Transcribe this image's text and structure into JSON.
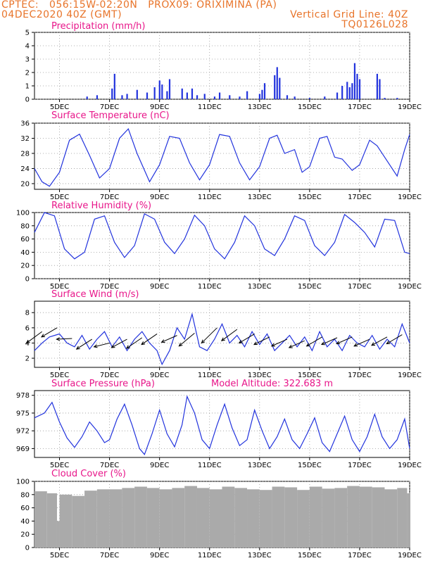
{
  "header": {
    "line1": "CPTEC:   056:15W-02:20N   PROX09: ORIXIMINA (PA)",
    "line2": "04DEC2020 40Z (GMT)",
    "grid_note": "Vertical Grid Line: 40Z",
    "code": "TQ0126L028"
  },
  "colors": {
    "header": "#e8742a",
    "title": "#e8168a",
    "series": "#2233dd",
    "cloud": "#aaaaaa",
    "grid": "#999999"
  },
  "chart_data": [
    {
      "id": "precip",
      "type": "bar",
      "title": "Precipitation (mm/h)",
      "ylim": [
        0,
        5
      ],
      "yticks": [
        0,
        1,
        2,
        3,
        4,
        5
      ],
      "x_ticks": [
        "5DEC",
        "7DEC",
        "9DEC",
        "11DEC",
        "13DEC",
        "15DEC",
        "17DEC",
        "19DEC"
      ],
      "points": [
        [
          6.1,
          0.2
        ],
        [
          6.5,
          0.3
        ],
        [
          7.1,
          0.8
        ],
        [
          7.2,
          1.9
        ],
        [
          7.5,
          0.3
        ],
        [
          7.7,
          0.4
        ],
        [
          8.1,
          0.7
        ],
        [
          8.5,
          0.5
        ],
        [
          8.8,
          0.9
        ],
        [
          9.0,
          1.4
        ],
        [
          9.1,
          1.1
        ],
        [
          9.3,
          0.6
        ],
        [
          9.4,
          1.5
        ],
        [
          9.9,
          0.8
        ],
        [
          10.1,
          0.5
        ],
        [
          10.3,
          0.8
        ],
        [
          10.5,
          0.3
        ],
        [
          10.8,
          0.4
        ],
        [
          11.2,
          0.2
        ],
        [
          11.4,
          0.5
        ],
        [
          11.8,
          0.3
        ],
        [
          12.2,
          0.2
        ],
        [
          12.5,
          0.6
        ],
        [
          13.0,
          0.4
        ],
        [
          13.1,
          0.7
        ],
        [
          13.2,
          1.2
        ],
        [
          13.6,
          1.8
        ],
        [
          13.7,
          2.4
        ],
        [
          13.8,
          1.6
        ],
        [
          14.1,
          0.3
        ],
        [
          14.4,
          0.2
        ],
        [
          15.0,
          0.1
        ],
        [
          15.6,
          0.2
        ],
        [
          16.1,
          0.5
        ],
        [
          16.3,
          1.0
        ],
        [
          16.5,
          1.3
        ],
        [
          16.6,
          0.9
        ],
        [
          16.7,
          1.2
        ],
        [
          16.8,
          2.7
        ],
        [
          16.9,
          1.9
        ],
        [
          17.0,
          1.5
        ],
        [
          17.7,
          1.9
        ],
        [
          17.8,
          1.5
        ],
        [
          18.0,
          0.1
        ],
        [
          18.5,
          0.1
        ]
      ]
    },
    {
      "id": "temp",
      "type": "line",
      "title": "Surface Temperature (nC)",
      "ylim": [
        18.5,
        36
      ],
      "yticks": [
        20,
        24,
        28,
        32,
        36
      ],
      "x_ticks": [
        "5DEC",
        "7DEC",
        "9DEC",
        "11DEC",
        "13DEC",
        "15DEC",
        "17DEC",
        "19DEC"
      ],
      "points": [
        [
          4.0,
          24.0
        ],
        [
          4.3,
          20.5
        ],
        [
          4.6,
          19.3
        ],
        [
          5.0,
          23.0
        ],
        [
          5.4,
          31.5
        ],
        [
          5.8,
          33.1
        ],
        [
          6.2,
          27.5
        ],
        [
          6.6,
          21.5
        ],
        [
          7.0,
          24.0
        ],
        [
          7.4,
          32.0
        ],
        [
          7.75,
          34.5
        ],
        [
          8.1,
          28.0
        ],
        [
          8.6,
          20.5
        ],
        [
          9.0,
          25.0
        ],
        [
          9.4,
          32.5
        ],
        [
          9.8,
          32.0
        ],
        [
          10.2,
          25.5
        ],
        [
          10.6,
          21.0
        ],
        [
          11.0,
          25.0
        ],
        [
          11.4,
          33.0
        ],
        [
          11.8,
          32.5
        ],
        [
          12.2,
          25.5
        ],
        [
          12.6,
          21.0
        ],
        [
          13.0,
          24.5
        ],
        [
          13.4,
          32.0
        ],
        [
          13.7,
          32.8
        ],
        [
          14.0,
          28.0
        ],
        [
          14.4,
          29.0
        ],
        [
          14.7,
          23.0
        ],
        [
          15.0,
          24.5
        ],
        [
          15.4,
          32.0
        ],
        [
          15.7,
          32.5
        ],
        [
          16.0,
          27.0
        ],
        [
          16.3,
          26.5
        ],
        [
          16.7,
          23.5
        ],
        [
          17.0,
          25.0
        ],
        [
          17.4,
          31.5
        ],
        [
          17.7,
          30.0
        ],
        [
          18.1,
          26.0
        ],
        [
          18.5,
          22.0
        ],
        [
          18.8,
          29.0
        ],
        [
          19.0,
          33.0
        ]
      ]
    },
    {
      "id": "rh",
      "type": "line",
      "title": "Relative Humidity (%)",
      "ylim": [
        0,
        100
      ],
      "yticks": [
        0,
        20,
        40,
        60,
        80,
        100
      ],
      "x_ticks": [
        "5DEC",
        "7DEC",
        "9DEC",
        "11DEC",
        "13DEC",
        "15DEC",
        "17DEC",
        "19DEC"
      ],
      "points": [
        [
          4.0,
          70
        ],
        [
          4.4,
          100
        ],
        [
          4.8,
          95
        ],
        [
          5.2,
          45
        ],
        [
          5.6,
          30
        ],
        [
          6.0,
          40
        ],
        [
          6.4,
          90
        ],
        [
          6.8,
          95
        ],
        [
          7.2,
          55
        ],
        [
          7.6,
          32
        ],
        [
          8.0,
          50
        ],
        [
          8.4,
          98
        ],
        [
          8.8,
          90
        ],
        [
          9.2,
          55
        ],
        [
          9.6,
          38
        ],
        [
          10.0,
          60
        ],
        [
          10.4,
          96
        ],
        [
          10.8,
          80
        ],
        [
          11.2,
          45
        ],
        [
          11.6,
          30
        ],
        [
          12.0,
          55
        ],
        [
          12.4,
          95
        ],
        [
          12.8,
          80
        ],
        [
          13.2,
          45
        ],
        [
          13.6,
          35
        ],
        [
          14.0,
          60
        ],
        [
          14.4,
          95
        ],
        [
          14.8,
          88
        ],
        [
          15.2,
          50
        ],
        [
          15.6,
          35
        ],
        [
          16.0,
          55
        ],
        [
          16.4,
          97
        ],
        [
          16.8,
          85
        ],
        [
          17.2,
          70
        ],
        [
          17.6,
          48
        ],
        [
          18.0,
          90
        ],
        [
          18.4,
          88
        ],
        [
          18.8,
          40
        ],
        [
          19.0,
          38
        ]
      ]
    },
    {
      "id": "wind",
      "type": "line",
      "title": "Surface Wind (m/s)",
      "ylim": [
        0.8,
        9.5
      ],
      "yticks": [
        2,
        4,
        6,
        8
      ],
      "x_ticks": [
        "5DEC",
        "7DEC",
        "9DEC",
        "11DEC",
        "13DEC",
        "15DEC",
        "17DEC",
        "19DEC"
      ],
      "points": [
        [
          4.0,
          3.0
        ],
        [
          4.3,
          4.0
        ],
        [
          4.6,
          4.8
        ],
        [
          5.0,
          5.2
        ],
        [
          5.3,
          4.0
        ],
        [
          5.6,
          3.5
        ],
        [
          5.9,
          5.0
        ],
        [
          6.2,
          3.2
        ],
        [
          6.5,
          4.5
        ],
        [
          6.8,
          5.5
        ],
        [
          7.1,
          3.5
        ],
        [
          7.4,
          4.8
        ],
        [
          7.7,
          3.0
        ],
        [
          8.0,
          4.5
        ],
        [
          8.3,
          5.5
        ],
        [
          8.6,
          4.0
        ],
        [
          8.9,
          3.0
        ],
        [
          9.1,
          1.2
        ],
        [
          9.4,
          3.0
        ],
        [
          9.7,
          6.0
        ],
        [
          10.0,
          4.5
        ],
        [
          10.3,
          7.8
        ],
        [
          10.6,
          3.5
        ],
        [
          10.9,
          3.0
        ],
        [
          11.2,
          4.5
        ],
        [
          11.5,
          6.5
        ],
        [
          11.8,
          4.0
        ],
        [
          12.1,
          5.0
        ],
        [
          12.4,
          3.5
        ],
        [
          12.7,
          5.5
        ],
        [
          13.0,
          3.8
        ],
        [
          13.3,
          5.2
        ],
        [
          13.6,
          3.0
        ],
        [
          13.9,
          4.0
        ],
        [
          14.2,
          5.0
        ],
        [
          14.5,
          3.5
        ],
        [
          14.8,
          4.8
        ],
        [
          15.1,
          3.0
        ],
        [
          15.4,
          5.5
        ],
        [
          15.7,
          3.5
        ],
        [
          16.0,
          4.5
        ],
        [
          16.3,
          3.0
        ],
        [
          16.6,
          5.0
        ],
        [
          16.9,
          4.0
        ],
        [
          17.2,
          3.5
        ],
        [
          17.5,
          5.0
        ],
        [
          17.8,
          3.2
        ],
        [
          18.1,
          4.5
        ],
        [
          18.4,
          3.5
        ],
        [
          18.7,
          6.5
        ],
        [
          19.0,
          4.0
        ]
      ],
      "arrows": [
        [
          4.3,
          5.5,
          4.0
        ],
        [
          4.9,
          6.0,
          4.8
        ],
        [
          5.5,
          4.6,
          4.5
        ],
        [
          6.3,
          4.5,
          3.2
        ],
        [
          7.0,
          4.0,
          3.5
        ],
        [
          7.7,
          4.5,
          3.4
        ],
        [
          8.3,
          4.7,
          3.3
        ],
        [
          8.9,
          5.2,
          3.8
        ],
        [
          9.7,
          5.0,
          4.1
        ],
        [
          10.4,
          5.3,
          3.6
        ],
        [
          11.3,
          6.0,
          4.0
        ],
        [
          12.1,
          5.8,
          4.3
        ],
        [
          12.8,
          5.2,
          4.0
        ],
        [
          13.4,
          4.8,
          3.8
        ],
        [
          14.1,
          4.5,
          3.6
        ],
        [
          14.8,
          4.3,
          3.4
        ],
        [
          15.5,
          4.8,
          3.6
        ],
        [
          16.1,
          4.7,
          3.8
        ],
        [
          16.7,
          4.8,
          3.9
        ],
        [
          17.4,
          4.5,
          3.6
        ],
        [
          18.1,
          4.8,
          3.7
        ],
        [
          18.7,
          5.1,
          3.9
        ]
      ]
    },
    {
      "id": "press",
      "type": "line",
      "title": "Surface Pressure (hPa)",
      "subtitle": "Model Altitude: 322.683 m",
      "ylim": [
        967.5,
        978.8
      ],
      "yticks": [
        969,
        972,
        975,
        978
      ],
      "x_ticks": [
        "5DEC",
        "7DEC",
        "9DEC",
        "11DEC",
        "13DEC",
        "15DEC",
        "17DEC",
        "19DEC"
      ],
      "points": [
        [
          4.0,
          974.2
        ],
        [
          4.4,
          975.0
        ],
        [
          4.7,
          976.8
        ],
        [
          5.0,
          973.5
        ],
        [
          5.3,
          970.8
        ],
        [
          5.6,
          969.2
        ],
        [
          5.9,
          971.0
        ],
        [
          6.2,
          973.5
        ],
        [
          6.5,
          972.0
        ],
        [
          6.8,
          970.0
        ],
        [
          7.0,
          970.5
        ],
        [
          7.3,
          974.0
        ],
        [
          7.6,
          976.5
        ],
        [
          7.9,
          973.0
        ],
        [
          8.2,
          969.0
        ],
        [
          8.4,
          968.0
        ],
        [
          8.7,
          971.5
        ],
        [
          9.0,
          975.5
        ],
        [
          9.3,
          971.5
        ],
        [
          9.6,
          969.3
        ],
        [
          9.9,
          973.0
        ],
        [
          10.1,
          977.8
        ],
        [
          10.4,
          975.0
        ],
        [
          10.7,
          970.5
        ],
        [
          11.0,
          969.0
        ],
        [
          11.3,
          973.0
        ],
        [
          11.6,
          976.5
        ],
        [
          11.9,
          972.5
        ],
        [
          12.2,
          969.5
        ],
        [
          12.5,
          970.5
        ],
        [
          12.8,
          975.5
        ],
        [
          13.1,
          972.0
        ],
        [
          13.4,
          969.0
        ],
        [
          13.7,
          971.0
        ],
        [
          14.0,
          974.0
        ],
        [
          14.3,
          970.5
        ],
        [
          14.6,
          969.0
        ],
        [
          14.9,
          971.5
        ],
        [
          15.2,
          974.2
        ],
        [
          15.5,
          970.0
        ],
        [
          15.8,
          968.5
        ],
        [
          16.1,
          971.5
        ],
        [
          16.4,
          974.5
        ],
        [
          16.7,
          970.5
        ],
        [
          17.0,
          968.5
        ],
        [
          17.3,
          971.0
        ],
        [
          17.6,
          974.8
        ],
        [
          17.9,
          971.0
        ],
        [
          18.2,
          969.0
        ],
        [
          18.5,
          970.5
        ],
        [
          18.8,
          974.0
        ],
        [
          19.0,
          969.0
        ]
      ]
    },
    {
      "id": "cloud",
      "type": "bar",
      "title": "Cloud Cover (%)",
      "ylim": [
        0,
        100
      ],
      "yticks": [
        0,
        20,
        40,
        60,
        80,
        100
      ],
      "x_ticks": [
        "5DEC",
        "7DEC",
        "9DEC",
        "11DEC",
        "13DEC",
        "15DEC",
        "17DEC",
        "19DEC"
      ],
      "points": [
        [
          4.0,
          85
        ],
        [
          4.5,
          82
        ],
        [
          4.9,
          40
        ],
        [
          5.0,
          80
        ],
        [
          5.5,
          78
        ],
        [
          6.0,
          86
        ],
        [
          6.5,
          88
        ],
        [
          7.0,
          88
        ],
        [
          7.5,
          90
        ],
        [
          8.0,
          92
        ],
        [
          8.5,
          90
        ],
        [
          9.0,
          88
        ],
        [
          9.5,
          90
        ],
        [
          10.0,
          93
        ],
        [
          10.5,
          90
        ],
        [
          11.0,
          88
        ],
        [
          11.5,
          92
        ],
        [
          12.0,
          90
        ],
        [
          12.5,
          88
        ],
        [
          13.0,
          87
        ],
        [
          13.5,
          92
        ],
        [
          14.0,
          91
        ],
        [
          14.5,
          87
        ],
        [
          15.0,
          92
        ],
        [
          15.5,
          89
        ],
        [
          16.0,
          90
        ],
        [
          16.5,
          93
        ],
        [
          17.0,
          92
        ],
        [
          17.5,
          91
        ],
        [
          18.0,
          88
        ],
        [
          18.5,
          90
        ],
        [
          18.9,
          82
        ],
        [
          19.0,
          84
        ]
      ]
    }
  ]
}
